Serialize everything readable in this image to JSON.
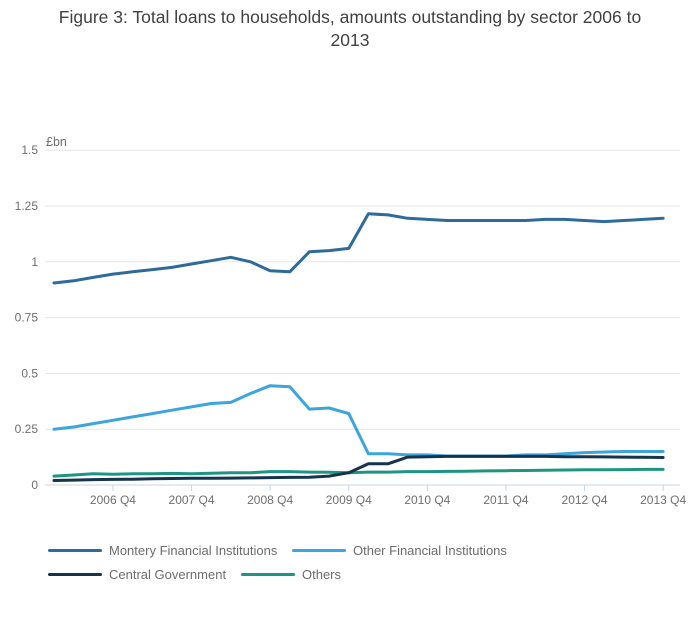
{
  "header": {
    "title_line1": "Figure 3: Total loans to households, amounts outstanding by sector 2006 to",
    "title_line2": "2013"
  },
  "chart_data": {
    "type": "line",
    "title": "Figure 3: Total loans to households, amounts outstanding by sector 2006 to 2013",
    "ylabel": "£bn",
    "ylim": [
      0,
      1.5
    ],
    "yticks": [
      "0",
      "0.25",
      "0.5",
      "0.75",
      "1",
      "1.25",
      "1.5"
    ],
    "x_start": "2006 Q1",
    "x_end": "2013 Q4",
    "x_points": 32,
    "x_tick_labels": [
      "2006 Q4",
      "2007 Q4",
      "2008 Q4",
      "2009 Q4",
      "2010 Q4",
      "2011 Q4",
      "2012 Q4",
      "2013 Q4"
    ],
    "x_tick_indices": [
      3,
      7,
      11,
      15,
      19,
      23,
      27,
      31
    ],
    "grid": "horizontal",
    "legend_position": "bottom",
    "series": [
      {
        "name": "Montery Financial Institutions",
        "color": "#2e6b9a",
        "values": [
          0.905,
          0.915,
          0.93,
          0.945,
          0.955,
          0.965,
          0.975,
          0.99,
          1.005,
          1.02,
          1.0,
          0.96,
          0.955,
          1.045,
          1.05,
          1.06,
          1.215,
          1.21,
          1.195,
          1.19,
          1.185,
          1.185,
          1.185,
          1.185,
          1.185,
          1.19,
          1.19,
          1.185,
          1.18,
          1.185,
          1.19,
          1.195
        ]
      },
      {
        "name": "Other Financial Institutions",
        "color": "#3ba5dc",
        "values": [
          0.25,
          0.26,
          0.275,
          0.29,
          0.305,
          0.32,
          0.335,
          0.35,
          0.365,
          0.37,
          0.41,
          0.445,
          0.44,
          0.34,
          0.345,
          0.32,
          0.14,
          0.14,
          0.135,
          0.135,
          0.13,
          0.13,
          0.13,
          0.13,
          0.135,
          0.135,
          0.14,
          0.145,
          0.148,
          0.15,
          0.15,
          0.15
        ]
      },
      {
        "name": "Central Government",
        "color": "#16344c",
        "values": [
          0.02,
          0.022,
          0.024,
          0.025,
          0.026,
          0.028,
          0.029,
          0.03,
          0.03,
          0.031,
          0.032,
          0.033,
          0.034,
          0.035,
          0.04,
          0.055,
          0.095,
          0.095,
          0.125,
          0.127,
          0.128,
          0.128,
          0.128,
          0.128,
          0.128,
          0.128,
          0.127,
          0.127,
          0.126,
          0.125,
          0.124,
          0.123
        ]
      },
      {
        "name": "Others",
        "color": "#1e9583",
        "values": [
          0.04,
          0.045,
          0.05,
          0.048,
          0.05,
          0.05,
          0.052,
          0.05,
          0.053,
          0.055,
          0.055,
          0.06,
          0.06,
          0.058,
          0.057,
          0.055,
          0.058,
          0.058,
          0.06,
          0.06,
          0.061,
          0.062,
          0.063,
          0.064,
          0.065,
          0.066,
          0.067,
          0.068,
          0.068,
          0.069,
          0.07,
          0.07
        ]
      }
    ]
  },
  "colors": {
    "grid": "#e6e6e6",
    "axis": "#c7d5e2",
    "tick_text": "#6f6f6f",
    "legend_text": "#6d6d6d",
    "title_text": "#414142",
    "background": "#ffffff"
  }
}
